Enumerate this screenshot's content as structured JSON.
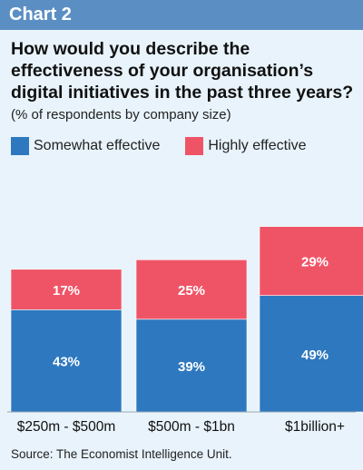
{
  "header": {
    "label": "Chart 2"
  },
  "chart_data": {
    "type": "bar",
    "stacked": true,
    "title": "How would you describe the effectiveness of your organisation’s digital initiatives in the past three years?",
    "subtitle": "(% of respondents by company size)",
    "categories": [
      "$250m - $500m",
      "$500m - $1bn",
      "$1billion+"
    ],
    "series": [
      {
        "name": "Somewhat effective",
        "values": [
          43,
          39,
          49
        ],
        "labels": [
          "43%",
          "39%",
          "49%"
        ],
        "color": "#2e78bf"
      },
      {
        "name": "Highly effective",
        "values": [
          17,
          25,
          29
        ],
        "labels": [
          "17%",
          "25%",
          "29%"
        ],
        "color": "#ef5466"
      }
    ],
    "ylim": [
      0,
      100
    ],
    "legend": "top-left",
    "grid": false
  },
  "source": "Source: The Economist Intelligence Unit."
}
